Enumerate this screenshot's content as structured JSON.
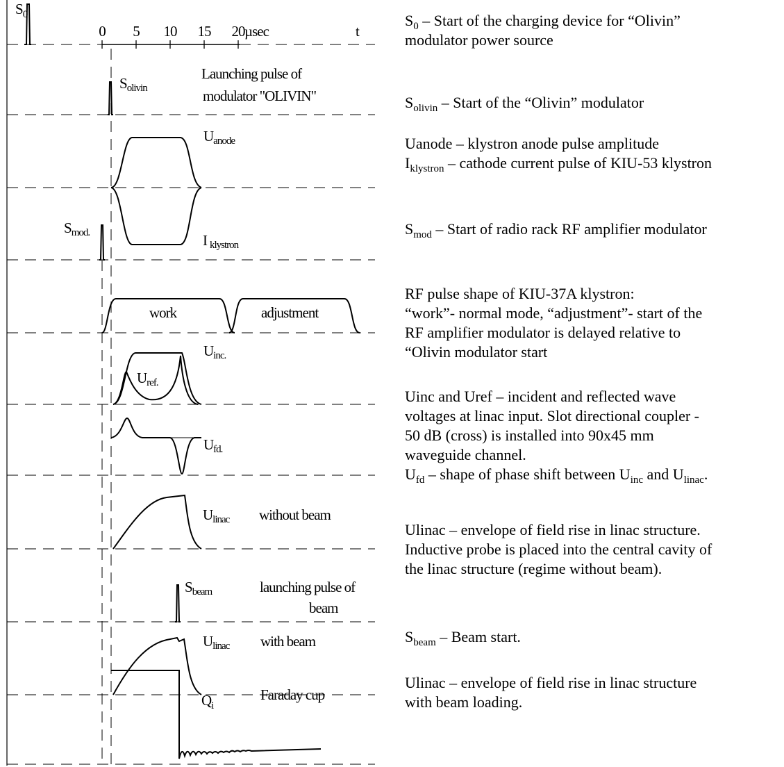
{
  "diagram": {
    "axis": {
      "ticks": [
        0,
        5,
        10,
        15,
        20
      ],
      "unit": "µsec",
      "end": "t"
    },
    "labels": {
      "s0": {
        "base": "S",
        "sub": "0"
      },
      "olivin_note": [
        "Launching pulse of",
        "modulator \"OLIVIN\""
      ],
      "s_olivin": {
        "base": "S",
        "sub": "olivin"
      },
      "u_anode": {
        "base": "U",
        "sub": "anode"
      },
      "s_mod": {
        "base": "S",
        "sub": "mod."
      },
      "i_klystron": {
        "base": "I",
        "sub": "klystron"
      },
      "work": "work",
      "adjustment": "adjustment",
      "u_inc": {
        "base": "U",
        "sub": "inc."
      },
      "u_ref": {
        "base": "U",
        "sub": "ref."
      },
      "u_fd": {
        "base": "U",
        "sub": "fd."
      },
      "u_linac_1": {
        "base": "U",
        "sub": "linac"
      },
      "without_beam": "without beam",
      "s_beam": {
        "base": "S",
        "sub": "beam"
      },
      "beam_note": [
        "launching pulse of",
        "beam"
      ],
      "u_linac_2": {
        "base": "U",
        "sub": "linac"
      },
      "with_beam": "with beam",
      "q_i": {
        "base": "Q",
        "sub": "i"
      },
      "faraday": "Faraday cup"
    }
  },
  "descriptions": [
    [
      [
        "S",
        "0",
        " – Start of the charging device for “Olivin”"
      ],
      [
        "modulator power source"
      ]
    ],
    [
      [
        "S",
        "olivin",
        " – Start of the “Olivin” modulator"
      ]
    ],
    [
      [
        "Uanode – klystron anode pulse amplitude"
      ],
      [
        "I",
        "klystron",
        " – cathode current pulse of KIU-53 klystron"
      ]
    ],
    [
      [
        "S",
        "mod",
        " – Start of radio rack RF amplifier modulator"
      ]
    ],
    [
      [
        "RF pulse shape of KIU-37A klystron:"
      ],
      [
        "“work”- normal mode, “adjustment”- start of the"
      ],
      [
        "RF amplifier modulator is delayed relative to"
      ],
      [
        "“Olivin modulator start"
      ]
    ],
    [
      [
        "Uinc and Uref – incident and reflected wave"
      ],
      [
        "voltages at linac input. Slot directional coupler -"
      ],
      [
        "50 dB (cross) is installed into 90x45 mm"
      ],
      [
        "waveguide channel."
      ],
      [
        "U",
        "fd",
        " – shape of phase shift between U",
        "inc",
        " and U",
        "linac",
        "."
      ]
    ],
    [
      [
        "Ulinac – envelope of field rise in linac structure."
      ],
      [
        "Inductive probe is placed into the central cavity of"
      ],
      [
        "the linac structure (regime without beam)."
      ]
    ],
    [
      [
        "S",
        "beam",
        " – Beam start."
      ]
    ],
    [
      [
        "Ulinac – envelope of field rise in linac structure"
      ],
      [
        "with beam loading."
      ]
    ]
  ]
}
